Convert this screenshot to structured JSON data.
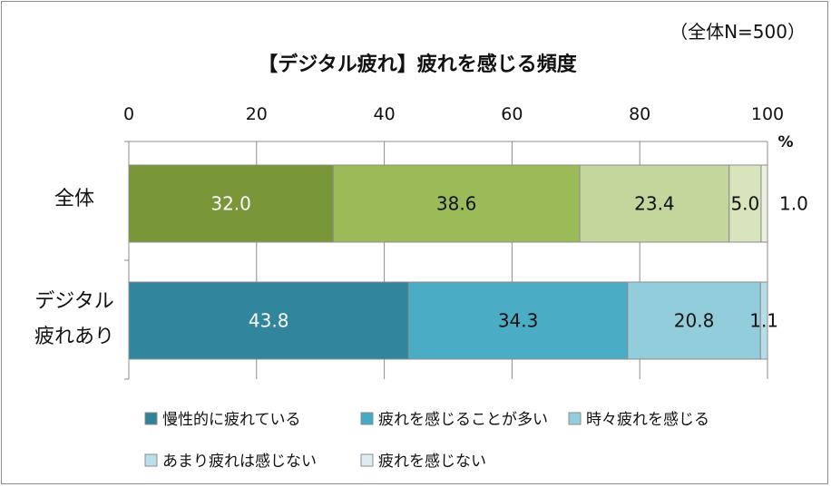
{
  "chart_data": {
    "type": "bar",
    "orientation": "horizontal",
    "stacked": true,
    "title": "【デジタル疲れ】疲れを感じる頻度",
    "subtitle": "（全体N=500）",
    "unit": "%",
    "xlim": [
      0,
      100
    ],
    "x_ticks": [
      "0",
      "20",
      "40",
      "60",
      "80",
      "100"
    ],
    "grid": true,
    "legend_position": "bottom",
    "categories": [
      "全体",
      "デジタル\n疲れあり"
    ],
    "legend": [
      "慢性的に疲れている",
      "疲れを感じることが多い",
      "時々疲れを感じる",
      "あまり疲れは感じない",
      "疲れを感じない"
    ],
    "legend_colors": [
      "#2e8399",
      "#45aac4",
      "#93cddd",
      "#b9e0ea",
      "#dcecf2"
    ],
    "series_colors": {
      "全体": [
        "#799639",
        "#9bbb59",
        "#c3d69b",
        "#d8e4bc",
        "#ebf1de"
      ],
      "デジタル\n疲れあり": [
        "#31859c",
        "#4bacc6",
        "#92cddc",
        "#b7dee8",
        "#daeef3"
      ]
    },
    "values": [
      [
        32.0,
        38.6,
        23.4,
        5.0,
        1.0
      ],
      [
        43.8,
        34.3,
        20.8,
        1.1,
        0.0
      ]
    ],
    "labels": [
      [
        "32.0",
        "38.6",
        "23.4",
        "5.0",
        "1.0"
      ],
      [
        "43.8",
        "34.3",
        "20.8",
        "1.1",
        ""
      ]
    ]
  }
}
